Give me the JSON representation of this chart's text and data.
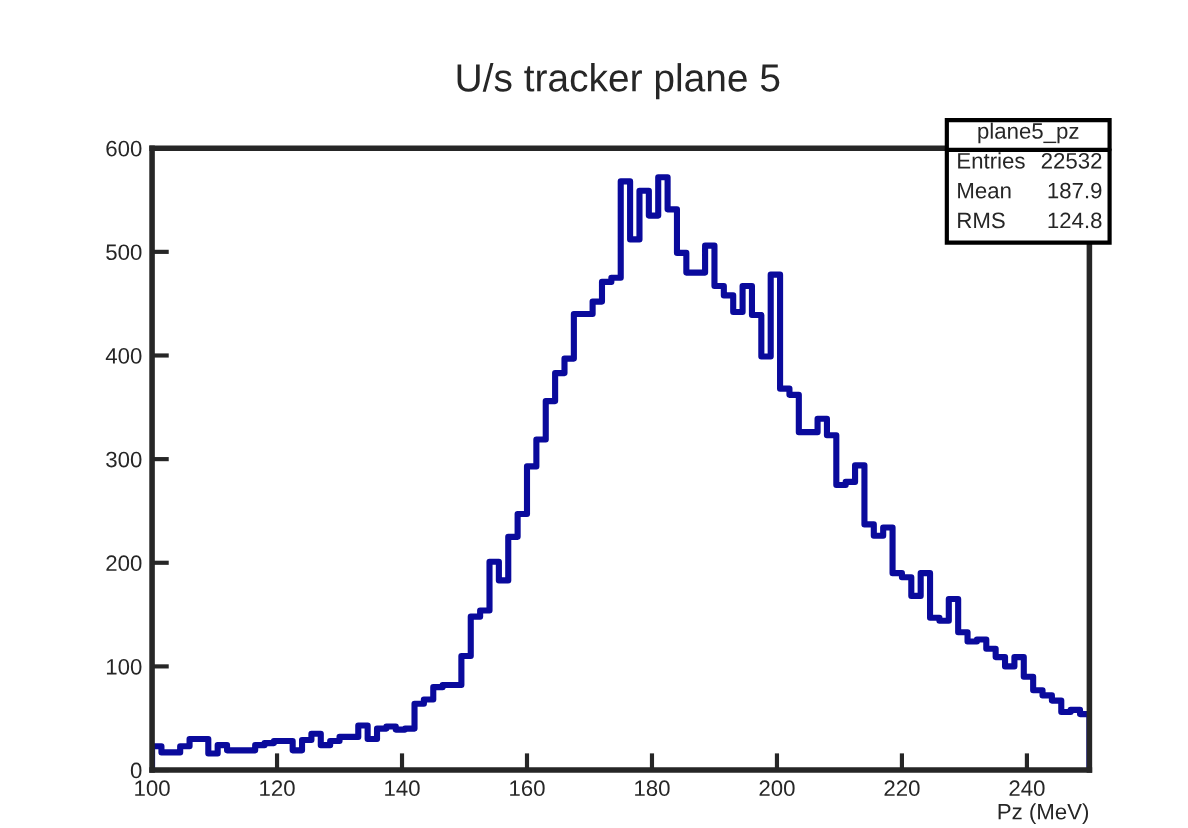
{
  "chart_data": {
    "type": "histogram",
    "title": "U/s tracker plane 5",
    "xlabel": "Pz (MeV)",
    "bins": [
      100,
      101.5,
      103,
      104.5,
      106,
      107.5,
      109,
      110.5,
      112,
      113.5,
      115,
      116.5,
      118,
      119.5,
      121,
      122.5,
      124,
      125.5,
      127,
      128.5,
      130,
      131.5,
      133,
      134.5,
      136,
      137.5,
      139,
      140.5,
      142,
      143.5,
      145,
      146.5,
      148,
      149.5,
      151,
      152.5,
      154,
      155.5,
      157,
      158.5,
      160,
      161.5,
      163,
      164.5,
      166,
      167.5,
      169,
      170.5,
      172,
      173.5,
      175,
      176.5,
      178,
      179.5,
      181,
      182.5,
      184,
      185.5,
      187,
      188.5,
      190,
      191.5,
      193,
      194.5,
      196,
      197.5,
      199,
      200.5,
      202,
      203.5,
      205,
      206.5,
      208,
      209.5,
      211,
      212.5,
      214,
      215.5,
      217,
      218.5,
      220,
      221.5,
      223,
      224.5,
      226,
      227.5,
      229,
      230.5,
      232,
      233.5,
      235,
      236.5,
      238,
      239.5,
      241,
      242.5,
      244,
      245.5,
      247,
      248.5,
      250
    ],
    "values": [
      23,
      17,
      17,
      23,
      30,
      30,
      16,
      24,
      19,
      19,
      19,
      24,
      26,
      28,
      28,
      19,
      29,
      35,
      24,
      28,
      32,
      32,
      43,
      30,
      40,
      42,
      39,
      40,
      64,
      68,
      80,
      82,
      82,
      110,
      148,
      154,
      201,
      183,
      225,
      247,
      293,
      319,
      356,
      383,
      397,
      440,
      440,
      452,
      471,
      475,
      568,
      512,
      559,
      535,
      572,
      541,
      499,
      480,
      480,
      506,
      467,
      458,
      442,
      467,
      439,
      399,
      478,
      368,
      362,
      326,
      326,
      339,
      323,
      275,
      278,
      294,
      237,
      226,
      234,
      190,
      186,
      168,
      190,
      147,
      144,
      165,
      133,
      124,
      126,
      117,
      109,
      100,
      109,
      90,
      77,
      72,
      67,
      56,
      58,
      54
    ],
    "color": "#0a0a9c",
    "xlim": [
      100,
      250
    ],
    "xticks": [
      100,
      120,
      140,
      160,
      180,
      200,
      220,
      240
    ],
    "ylim": [
      0,
      600
    ],
    "yticks": [
      0,
      100,
      200,
      300,
      400,
      500,
      600
    ],
    "annotations": [
      "plane5_pz",
      "Entries",
      "22532",
      "Mean",
      "187.9",
      "RMS",
      "124.8"
    ]
  }
}
